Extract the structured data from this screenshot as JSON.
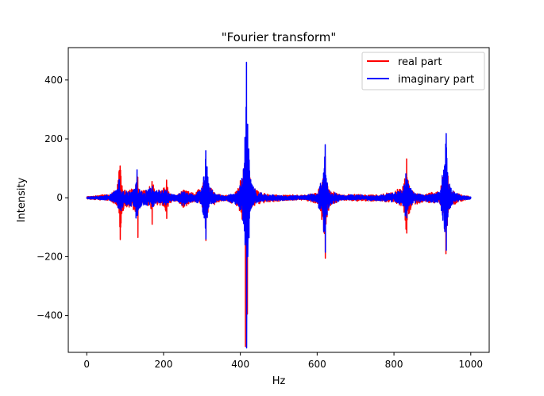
{
  "chart_data": {
    "type": "line",
    "title": "\"Fourier transform\"",
    "xlabel": "Hz",
    "ylabel": "Intensity",
    "xlim": [
      -48,
      1048
    ],
    "ylim": [
      -525,
      510
    ],
    "xticks": [
      0,
      200,
      400,
      600,
      800,
      1000
    ],
    "xtick_labels": [
      "0",
      "200",
      "400",
      "600",
      "800",
      "1000"
    ],
    "yticks": [
      -400,
      -200,
      0,
      200,
      400
    ],
    "ytick_labels": [
      "−400",
      "−200",
      "0",
      "200",
      "400"
    ],
    "grid": false,
    "legend_position": "top-right",
    "series": [
      {
        "name": "real part",
        "color": "#ff0000",
        "envelope": [
          [
            0,
            4
          ],
          [
            40,
            10
          ],
          [
            60,
            14
          ],
          [
            78,
            30
          ],
          [
            84,
            105
          ],
          [
            88,
            110
          ],
          [
            92,
            60
          ],
          [
            100,
            30
          ],
          [
            110,
            35
          ],
          [
            118,
            40
          ],
          [
            125,
            45
          ],
          [
            130,
            75
          ],
          [
            135,
            40
          ],
          [
            145,
            25
          ],
          [
            160,
            30
          ],
          [
            170,
            55
          ],
          [
            178,
            30
          ],
          [
            195,
            30
          ],
          [
            208,
            60
          ],
          [
            215,
            20
          ],
          [
            235,
            10
          ],
          [
            250,
            35
          ],
          [
            265,
            25
          ],
          [
            280,
            15
          ],
          [
            300,
            40
          ],
          [
            310,
            110
          ],
          [
            318,
            40
          ],
          [
            330,
            30
          ],
          [
            340,
            15
          ],
          [
            360,
            10
          ],
          [
            380,
            20
          ],
          [
            395,
            35
          ],
          [
            405,
            90
          ],
          [
            412,
            120
          ],
          [
            416,
            60
          ],
          [
            420,
            110
          ],
          [
            425,
            70
          ],
          [
            432,
            40
          ],
          [
            445,
            25
          ],
          [
            470,
            15
          ],
          [
            520,
            10
          ],
          [
            570,
            10
          ],
          [
            600,
            20
          ],
          [
            612,
            80
          ],
          [
            620,
            140
          ],
          [
            625,
            80
          ],
          [
            632,
            30
          ],
          [
            660,
            12
          ],
          [
            700,
            12
          ],
          [
            760,
            12
          ],
          [
            800,
            20
          ],
          [
            825,
            45
          ],
          [
            832,
            130
          ],
          [
            838,
            60
          ],
          [
            850,
            25
          ],
          [
            880,
            15
          ],
          [
            920,
            25
          ],
          [
            932,
            130
          ],
          [
            936,
            190
          ],
          [
            942,
            60
          ],
          [
            955,
            25
          ],
          [
            980,
            10
          ],
          [
            1000,
            5
          ]
        ],
        "peaks": [
          [
            87,
            108,
            -142
          ],
          [
            133,
            70,
            -135
          ],
          [
            170,
            55,
            -90
          ],
          [
            208,
            60,
            -70
          ],
          [
            310,
            95,
            -145
          ],
          [
            413,
            110,
            -505
          ],
          [
            418,
            118,
            -395
          ],
          [
            621,
            140,
            -205
          ],
          [
            833,
            132,
            -120
          ],
          [
            935,
            145,
            -190
          ]
        ]
      },
      {
        "name": "imaginary part",
        "color": "#0000ff",
        "envelope": [
          [
            0,
            3
          ],
          [
            40,
            8
          ],
          [
            60,
            12
          ],
          [
            78,
            25
          ],
          [
            84,
            70
          ],
          [
            88,
            55
          ],
          [
            92,
            40
          ],
          [
            100,
            25
          ],
          [
            110,
            30
          ],
          [
            118,
            35
          ],
          [
            125,
            40
          ],
          [
            131,
            95
          ],
          [
            135,
            40
          ],
          [
            145,
            25
          ],
          [
            160,
            30
          ],
          [
            170,
            45
          ],
          [
            178,
            25
          ],
          [
            195,
            25
          ],
          [
            208,
            40
          ],
          [
            215,
            15
          ],
          [
            235,
            10
          ],
          [
            250,
            30
          ],
          [
            265,
            20
          ],
          [
            280,
            12
          ],
          [
            300,
            35
          ],
          [
            310,
            160
          ],
          [
            318,
            40
          ],
          [
            330,
            25
          ],
          [
            340,
            12
          ],
          [
            360,
            10
          ],
          [
            380,
            18
          ],
          [
            395,
            30
          ],
          [
            405,
            80
          ],
          [
            412,
            200
          ],
          [
            416,
            460
          ],
          [
            420,
            250
          ],
          [
            425,
            80
          ],
          [
            432,
            40
          ],
          [
            445,
            20
          ],
          [
            470,
            12
          ],
          [
            520,
            8
          ],
          [
            570,
            8
          ],
          [
            600,
            18
          ],
          [
            612,
            80
          ],
          [
            620,
            180
          ],
          [
            625,
            90
          ],
          [
            632,
            30
          ],
          [
            660,
            10
          ],
          [
            700,
            10
          ],
          [
            760,
            10
          ],
          [
            800,
            18
          ],
          [
            825,
            40
          ],
          [
            832,
            95
          ],
          [
            838,
            50
          ],
          [
            850,
            20
          ],
          [
            880,
            12
          ],
          [
            920,
            20
          ],
          [
            932,
            150
          ],
          [
            936,
            220
          ],
          [
            942,
            60
          ],
          [
            955,
            20
          ],
          [
            980,
            8
          ],
          [
            1000,
            4
          ]
        ],
        "peaks": [
          [
            131,
            95,
            -60
          ],
          [
            310,
            160,
            -140
          ],
          [
            412,
            205,
            -160
          ],
          [
            416,
            460,
            -510
          ],
          [
            419,
            250,
            -200
          ],
          [
            621,
            180,
            -185
          ],
          [
            936,
            218,
            -178
          ]
        ]
      }
    ]
  }
}
